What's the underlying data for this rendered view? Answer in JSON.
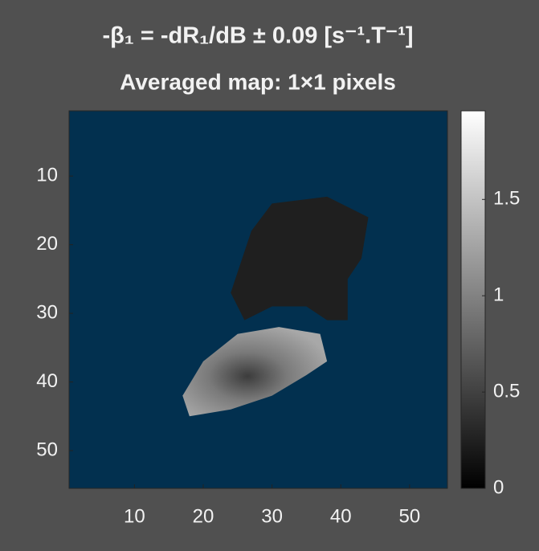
{
  "chart_data": {
    "type": "image",
    "title": "-β₁ = -dR₁/dB ± 0.09 [s⁻¹.T⁻¹]",
    "subtitle": "Averaged map: 1×1 pixels",
    "xlim": [
      0.5,
      55.5
    ],
    "ylim": [
      0.5,
      55.5
    ],
    "y_direction": "reverse",
    "xticks": [
      10,
      20,
      30,
      40,
      50
    ],
    "yticks": [
      10,
      20,
      30,
      40,
      50
    ],
    "background_color": "#02304f",
    "colorbar": {
      "clim": [
        0,
        1.96
      ],
      "ticks": [
        0,
        0.5,
        1,
        1.5
      ],
      "colormap": "gray"
    }
  }
}
